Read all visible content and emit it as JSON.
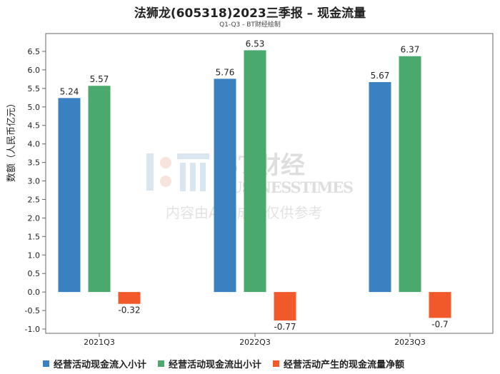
{
  "title": "法狮龙(605318)2023三季报 – 现金流量",
  "subtitle": "Q1-Q3 - BT财经绘制",
  "watermark": {
    "brand": "BT财经",
    "brand_en": "BUSINESSTIMES",
    "disclaimer": "内容由AI生成，仅供参考"
  },
  "chart_data": {
    "type": "bar",
    "categories": [
      "2021Q3",
      "2022Q3",
      "2023Q3"
    ],
    "ylabel": "数额（人民币亿元）",
    "ylim": [
      -1.0,
      6.5
    ],
    "yticks": [
      "6.5",
      "6.0",
      "5.5",
      "5.0",
      "4.5",
      "4.0",
      "3.5",
      "3.0",
      "2.5",
      "2.0",
      "1.5",
      "1.0",
      "0.5",
      "0.0",
      "-0.5",
      "-1.0"
    ],
    "grid": false,
    "legend_position": "bottom",
    "series": [
      {
        "name": "经营活动现金流入小计",
        "color": "#3a81c1",
        "values": [
          5.24,
          5.76,
          5.67
        ],
        "labels": [
          "5.24",
          "5.76",
          "5.67"
        ]
      },
      {
        "name": "经营活动现金流出小计",
        "color": "#4aa96c",
        "values": [
          5.57,
          6.53,
          6.37
        ],
        "labels": [
          "5.57",
          "6.53",
          "6.37"
        ]
      },
      {
        "name": "经营活动产生的现金流量净额",
        "color": "#f1592a",
        "values": [
          -0.32,
          -0.77,
          -0.7
        ],
        "labels": [
          "-0.32",
          "-0.77",
          "-0.7"
        ]
      }
    ]
  }
}
